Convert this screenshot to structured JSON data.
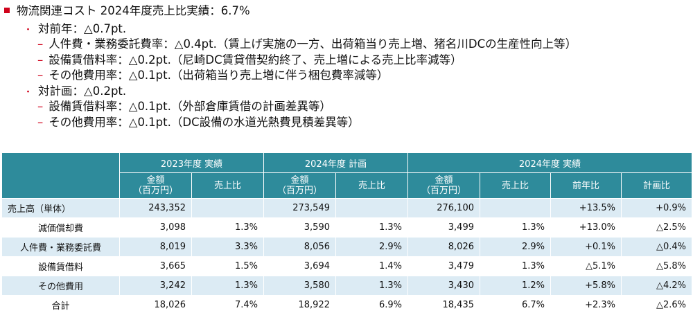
{
  "bullets": {
    "title": "物流関連コスト 2024年度売上比実績：6.7%",
    "yoy": {
      "label": "対前年：△0.7pt.",
      "items": [
        "人件費・業務委託費率：△0.4pt.（賃上げ実施の一方、出荷箱当り売上増、猪名川DCの生産性向上等）",
        "設備賃借料率：△0.2pt.（尼崎DC賃貸借契約終了、売上増による売上比率減等）",
        "その他費用率：△0.1pt.（出荷箱当り売上増に伴う梱包費率減等）"
      ]
    },
    "plan": {
      "label": "対計画：△0.2pt.",
      "items": [
        "設備賃借料率：△0.1pt.（外部倉庫賃借の計画差異等）",
        "その他費用率：△0.1pt.（DC設備の水道光熱費見積差異等）"
      ]
    }
  },
  "table": {
    "groups": [
      "2023年度 実績",
      "2024年度 計画",
      "2024年度 実績"
    ],
    "subheaders": {
      "amount_line1": "金額",
      "amount_line2": "（百万円）",
      "ratio": "売上比",
      "yoy": "前年比",
      "vs_plan": "計画比"
    },
    "rows": [
      [
        "売上高（単体）",
        "243,352",
        "",
        "273,549",
        "",
        "276,100",
        "",
        "+13.5%",
        "+0.9%"
      ],
      [
        "減価償却費",
        "3,098",
        "1.3%",
        "3,590",
        "1.3%",
        "3,499",
        "1.3%",
        "+13.0%",
        "△2.5%"
      ],
      [
        "人件費・業務委託費",
        "8,019",
        "3.3%",
        "8,056",
        "2.9%",
        "8,026",
        "2.9%",
        "+0.1%",
        "△0.4%"
      ],
      [
        "設備賃借料",
        "3,665",
        "1.5%",
        "3,694",
        "1.4%",
        "3,479",
        "1.3%",
        "△5.1%",
        "△5.8%"
      ],
      [
        "その他費用",
        "3,242",
        "1.3%",
        "3,580",
        "1.3%",
        "3,430",
        "1.2%",
        "+5.8%",
        "△4.2%"
      ],
      [
        "合計",
        "18,026",
        "7.4%",
        "18,922",
        "6.9%",
        "18,435",
        "6.7%",
        "+2.3%",
        "△2.6%"
      ]
    ]
  },
  "colors": {
    "accent_red": "#d0021b",
    "header_teal": "#2e8b9b",
    "row_band": "#dcebf4"
  }
}
